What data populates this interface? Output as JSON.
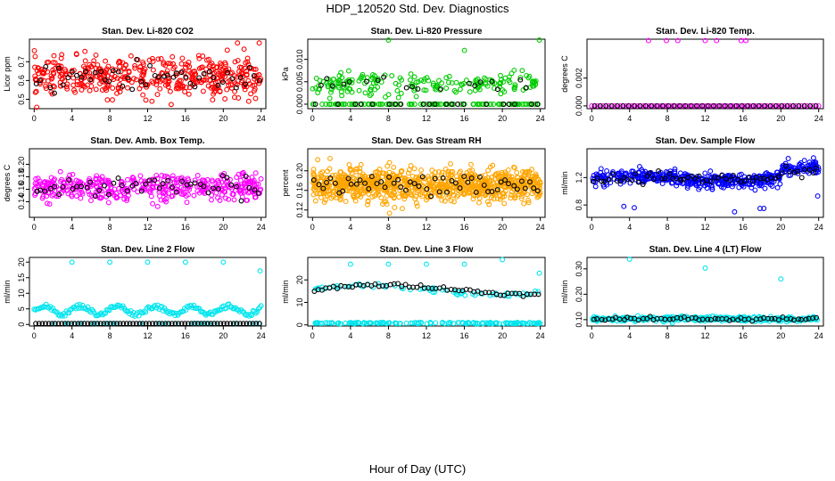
{
  "figure": {
    "title": "HDP_120520  Std. Dev. Diagnostics",
    "xlabel": "Hour of Day (UTC)"
  },
  "chart_data": [
    {
      "type": "scatter",
      "title": "Stan. Dev. Li-820 CO2",
      "ylabel": "Licor ppm",
      "xlim": [
        -0.5,
        24.5
      ],
      "ylim": [
        0.45,
        0.82
      ],
      "xticks": [
        "0",
        "4",
        "8",
        "12",
        "16",
        "20",
        "24"
      ],
      "yticks": [
        [
          "0.5",
          0.5
        ],
        [
          "0.6",
          0.6
        ],
        [
          "0.7",
          0.7
        ]
      ],
      "colors": {
        "main": "#ff0000",
        "ref": "#000000"
      },
      "gen": {
        "mode": "band",
        "n": 440,
        "base": 0.62,
        "spread": 0.085,
        "trend": 0.0,
        "refN": 50,
        "refSpread": 0.08
      },
      "extras": [
        [
          21.5,
          0.8
        ],
        [
          23.8,
          0.8
        ]
      ]
    },
    {
      "type": "scatter",
      "title": "Stan. Dev. Li-820 Pressure",
      "ylabel": "kPa",
      "xlim": [
        -0.5,
        24.5
      ],
      "ylim": [
        -0.001,
        0.0145
      ],
      "xticks": [
        "0",
        "4",
        "8",
        "12",
        "16",
        "20",
        "24"
      ],
      "yticks": [
        [
          "0.000",
          0.0
        ],
        [
          "0.005",
          0.005
        ],
        [
          "0.010",
          0.01
        ]
      ],
      "colors": {
        "main": "#00cc00",
        "ref": "#000000"
      },
      "gen": {
        "mode": "pressure",
        "n": 300,
        "base": 0.0045,
        "spread": 0.0025,
        "refN": 40,
        "refSpread": 0.002
      },
      "extras": [
        [
          8.0,
          0.0143
        ],
        [
          16.0,
          0.012
        ],
        [
          23.9,
          0.0143
        ]
      ]
    },
    {
      "type": "scatter",
      "title": "Stan. Dev. Li-820 Temp.",
      "ylabel": "degrees C",
      "xlim": [
        -0.5,
        24.5
      ],
      "ylim": [
        -0.0002,
        0.0048
      ],
      "xticks": [
        "0",
        "4",
        "8",
        "12",
        "16",
        "20",
        "24"
      ],
      "yticks": [
        [
          "0.000",
          0.0
        ],
        [
          "0.002",
          0.002
        ]
      ],
      "colors": {
        "main": "#ff00ff",
        "ref": "#000000"
      },
      "gen": {
        "mode": "zeroline",
        "n": 80,
        "refN": 40
      },
      "extras": [
        [
          6.0,
          0.0047
        ],
        [
          7.9,
          0.0047
        ],
        [
          9.1,
          0.0047
        ],
        [
          12.0,
          0.0047
        ],
        [
          13.2,
          0.0047
        ],
        [
          15.8,
          0.0047
        ],
        [
          16.3,
          0.0047
        ]
      ]
    },
    {
      "type": "scatter",
      "title": "Stan. Dev. Amb. Box Temp.",
      "ylabel": "degrees C",
      "xlim": [
        -0.5,
        24.5
      ],
      "ylim": [
        0.115,
        0.225
      ],
      "xticks": [
        "0",
        "4",
        "8",
        "12",
        "16",
        "20",
        "24"
      ],
      "yticks": [
        [
          "0.14",
          0.14
        ],
        [
          "0.16",
          0.16
        ],
        [
          "0.18",
          0.18
        ],
        [
          "0.20",
          0.2
        ]
      ],
      "colors": {
        "main": "#ff00ff",
        "ref": "#000000"
      },
      "gen": {
        "mode": "band",
        "n": 420,
        "base": 0.163,
        "spread": 0.018,
        "trend": 0.0,
        "refN": 50,
        "refSpread": 0.012
      },
      "extras": []
    },
    {
      "type": "scatter",
      "title": "Stan. Dev. Gas Stream RH",
      "ylabel": "percent",
      "xlim": [
        -0.5,
        24.5
      ],
      "ylim": [
        0.105,
        0.245
      ],
      "xticks": [
        "0",
        "4",
        "8",
        "12",
        "16",
        "20",
        "24"
      ],
      "yticks": [
        [
          "0.12",
          0.12
        ],
        [
          "0.16",
          0.16
        ],
        [
          "0.20",
          0.2
        ]
      ],
      "colors": {
        "main": "#ffa500",
        "ref": "#000000"
      },
      "gen": {
        "mode": "dense",
        "n": 900,
        "base": 0.172,
        "spread": 0.026,
        "trend": 0.0,
        "refN": 55,
        "refSpread": 0.015
      },
      "extras": []
    },
    {
      "type": "scatter",
      "title": "Stan. Dev. Sample Flow",
      "ylabel": "ml/min",
      "xlim": [
        -0.5,
        24.5
      ],
      "ylim": [
        0.62,
        1.62
      ],
      "xticks": [
        "0",
        "4",
        "8",
        "12",
        "16",
        "20",
        "24"
      ],
      "yticks": [
        [
          "0.8",
          0.8
        ],
        [
          "1.2",
          1.2
        ]
      ],
      "colors": {
        "main": "#0000ff",
        "ref": "#000000"
      },
      "gen": {
        "mode": "flow",
        "n": 480,
        "base": 1.18,
        "spread": 0.09,
        "trend": 0.0,
        "refN": 60,
        "refSpread": 0.05
      },
      "extras": [
        [
          3.4,
          0.78
        ],
        [
          4.5,
          0.76
        ],
        [
          15.1,
          0.7
        ],
        [
          17.8,
          0.75
        ],
        [
          18.2,
          0.75
        ],
        [
          23.9,
          0.93
        ]
      ]
    },
    {
      "type": "scatter",
      "title": "Stan. Dev. Line 2 Flow",
      "ylabel": "ml/min",
      "xlim": [
        -0.5,
        24.5
      ],
      "ylim": [
        -0.5,
        21.5
      ],
      "xticks": [
        "0",
        "4",
        "8",
        "12",
        "16",
        "20",
        "24"
      ],
      "yticks": [
        [
          "0",
          0
        ],
        [
          "5",
          5
        ],
        [
          "10",
          10
        ],
        [
          "15",
          15
        ],
        [
          "20",
          20
        ]
      ],
      "colors": {
        "main": "#00e5ee",
        "ref": "#000000"
      },
      "gen": {
        "mode": "line2",
        "n": 170,
        "refN": 70
      },
      "extras": [
        [
          4.0,
          20
        ],
        [
          8.0,
          20
        ],
        [
          12.0,
          20
        ],
        [
          16.0,
          20
        ],
        [
          20.0,
          20
        ],
        [
          23.9,
          17.2
        ]
      ]
    },
    {
      "type": "scatter",
      "title": "Stan. Dev. Line 3 Flow",
      "ylabel": "ml/min",
      "xlim": [
        -0.5,
        24.5
      ],
      "ylim": [
        -0.5,
        30
      ],
      "xticks": [
        "0",
        "4",
        "8",
        "12",
        "16",
        "20",
        "24"
      ],
      "yticks": [
        [
          "0",
          0
        ],
        [
          "10",
          10
        ],
        [
          "20",
          20
        ]
      ],
      "colors": {
        "main": "#00e5ee",
        "ref": "#000000"
      },
      "gen": {
        "mode": "line3",
        "n": 150,
        "refN": 60
      },
      "extras": [
        [
          4.0,
          27
        ],
        [
          8.0,
          27
        ],
        [
          12.0,
          27
        ],
        [
          16.0,
          27
        ],
        [
          20.0,
          29
        ],
        [
          23.9,
          23
        ]
      ]
    },
    {
      "type": "scatter",
      "title": "Stan. Dev. Line 4 (LT) Flow",
      "ylabel": "ml/min",
      "xlim": [
        -0.5,
        24.5
      ],
      "ylim": [
        0.075,
        0.345
      ],
      "xticks": [
        "0",
        "4",
        "8",
        "12",
        "16",
        "20",
        "24"
      ],
      "yticks": [
        [
          "0.10",
          0.1
        ],
        [
          "0.20",
          0.2
        ],
        [
          "0.30",
          0.3
        ]
      ],
      "colors": {
        "main": "#00e5ee",
        "ref": "#000000"
      },
      "gen": {
        "mode": "band",
        "n": 340,
        "base": 0.103,
        "spread": 0.008,
        "trend": 0.0,
        "refN": 60,
        "refSpread": 0.005
      },
      "extras": [
        [
          4.0,
          0.338
        ],
        [
          12.0,
          0.303
        ],
        [
          20.0,
          0.26
        ]
      ]
    }
  ]
}
